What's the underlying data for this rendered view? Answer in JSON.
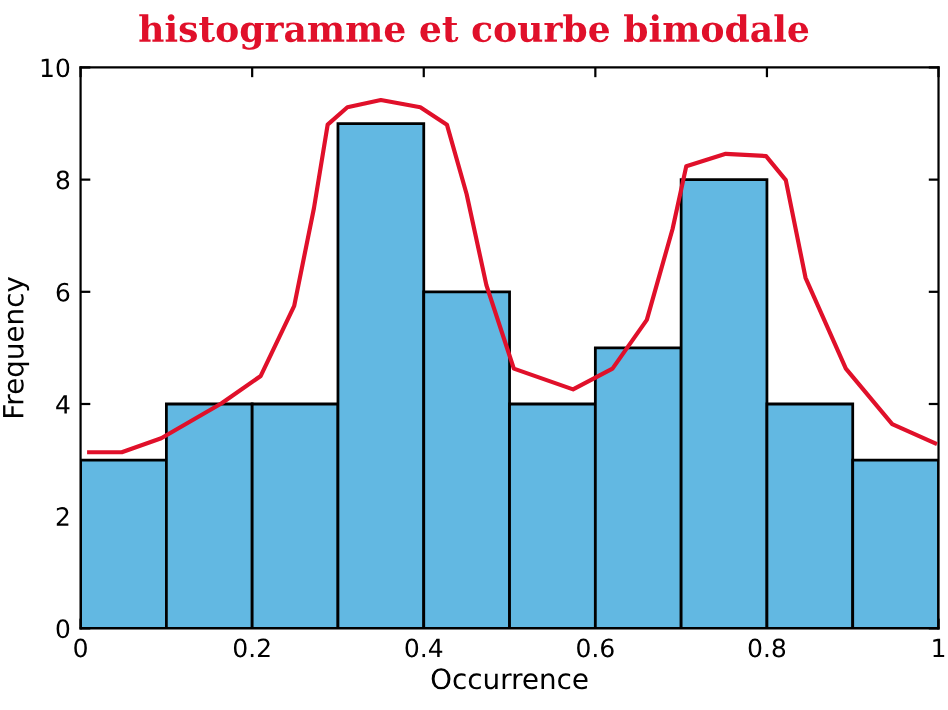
{
  "chart_data": {
    "type": "histogram",
    "title": "histogramme et courbe bimodale",
    "xlabel": "Occurrence",
    "ylabel": "Frequency",
    "bins": [
      0,
      0.1,
      0.2,
      0.3,
      0.4,
      0.5,
      0.6,
      0.7,
      0.8,
      0.9,
      1.0
    ],
    "series": [
      {
        "color": "#62b8e2",
        "values": [
          3,
          4,
          4,
          9,
          6,
          4,
          5,
          8,
          4,
          3
        ]
      },
      {
        "type": "line",
        "color": "#e0102a",
        "x": [
          0.01,
          0.048,
          0.094,
          0.164,
          0.21,
          0.249,
          0.272,
          0.288,
          0.311,
          0.35,
          0.396,
          0.427,
          0.45,
          0.473,
          0.505,
          0.574,
          0.62,
          0.66,
          0.69,
          0.706,
          0.752,
          0.799,
          0.822,
          0.845,
          0.892,
          0.946,
          0.996
        ],
        "values": [
          3.14,
          3.14,
          3.39,
          4.01,
          4.5,
          5.75,
          7.49,
          8.98,
          9.29,
          9.42,
          9.29,
          8.98,
          7.74,
          6.12,
          4.63,
          4.26,
          4.63,
          5.5,
          7.12,
          8.24,
          8.46,
          8.42,
          7.99,
          6.25,
          4.63,
          3.64,
          3.3
        ]
      }
    ],
    "xlim": [
      0,
      1
    ],
    "ylim": [
      0,
      10
    ],
    "xticks": [
      0,
      0.2,
      0.4,
      0.6,
      0.8,
      1
    ],
    "yticks": [
      0,
      2,
      4,
      6,
      8,
      10
    ],
    "grid": false
  }
}
